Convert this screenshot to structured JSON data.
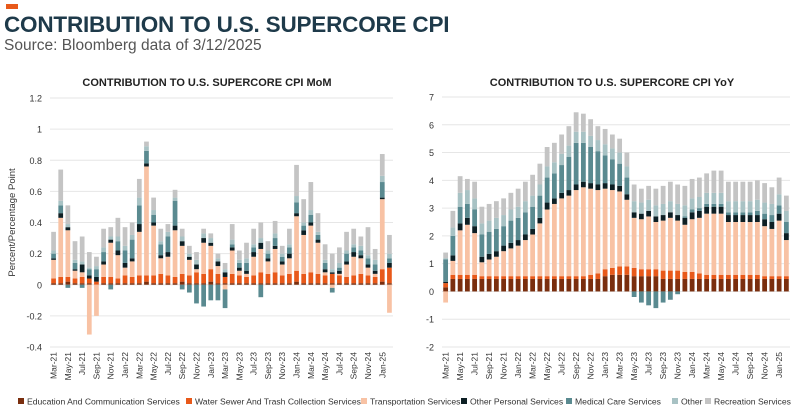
{
  "page": {
    "title": "CONTRIBUTION TO U.S. SUPERCORE CPI",
    "subtitle": "Source: Bloomberg data of 3/12/2025"
  },
  "colors": {
    "education": "#7a2e0e",
    "water": "#e8591a",
    "transportation": "#f8c2a4",
    "personal": "#0d1f24",
    "medical": "#5a8a90",
    "other": "#a8c2c4",
    "recreation": "#c4c4c4",
    "accent": "#e8591a",
    "title": "#1e3a4a"
  },
  "chart_data": [
    {
      "type": "bar",
      "stacked": true,
      "title": "CONTRIBUTION TO U.S. SUPERCORE CPI MoM",
      "xlabel": "",
      "ylabel": "Percent/Percentage Point",
      "ylim": [
        -0.4,
        1.2
      ],
      "yticks": [
        "-0.4",
        "-0.2",
        "0",
        "0.2",
        "0.4",
        "0.6",
        "0.8",
        "1",
        "1.2"
      ],
      "ytick_values": [
        -0.4,
        -0.2,
        0,
        0.2,
        0.4,
        0.6,
        0.8,
        1,
        1.2
      ],
      "categories": [
        "Mar-21",
        "Apr-21",
        "May-21",
        "Jun-21",
        "Jul-21",
        "Aug-21",
        "Sep-21",
        "Oct-21",
        "Nov-21",
        "Dec-21",
        "Jan-22",
        "Feb-22",
        "Mar-22",
        "Apr-22",
        "May-22",
        "Jun-22",
        "Jul-22",
        "Aug-22",
        "Sep-22",
        "Oct-22",
        "Nov-22",
        "Dec-22",
        "Jan-23",
        "Feb-23",
        "Mar-23",
        "Apr-23",
        "May-23",
        "Jun-23",
        "Jul-23",
        "Aug-23",
        "Sep-23",
        "Oct-23",
        "Nov-23",
        "Dec-23",
        "Jan-24",
        "Feb-24",
        "Mar-24",
        "Apr-24",
        "May-24",
        "Jun-24",
        "Jul-24",
        "Aug-24",
        "Sep-24",
        "Oct-24",
        "Nov-24",
        "Dec-24",
        "Jan-25",
        "Feb-25"
      ],
      "xtick_labels": [
        "Mar-21",
        "May-21",
        "Jul-21",
        "Sep-21",
        "Nov-21",
        "Jan-22",
        "Mar-22",
        "May-22",
        "Jul-22",
        "Sep-22",
        "Nov-22",
        "Jan-23",
        "Mar-23",
        "May-23",
        "Jul-23",
        "Sep-23",
        "Nov-23",
        "Jan-24",
        "Mar-24",
        "May-24",
        "Jul-24",
        "Sep-24",
        "Nov-24",
        "Jan-25"
      ],
      "series": [
        {
          "name": "Education And Communication Services",
          "key": "education",
          "values": [
            0.01,
            0.01,
            0.02,
            0.01,
            0.01,
            0.01,
            0.0,
            0.01,
            0.01,
            0.01,
            0.01,
            0.01,
            0.01,
            0.02,
            0.01,
            0.01,
            0.01,
            0.01,
            0.02,
            0.01,
            0.01,
            0.01,
            0.02,
            0.01,
            0.01,
            0.01,
            0.01,
            0.01,
            0.01,
            0.01,
            0.01,
            0.01,
            0.01,
            0.01,
            0.02,
            0.01,
            0.01,
            0.01,
            0.01,
            0.01,
            0.01,
            0.01,
            0.01,
            0.01,
            0.01,
            0.01,
            0.02,
            0.01
          ]
        },
        {
          "name": "Water Sewer And Trash Collection Services",
          "key": "water",
          "values": [
            0.03,
            0.04,
            0.03,
            0.03,
            0.04,
            0.03,
            0.02,
            0.04,
            0.04,
            0.03,
            0.05,
            0.04,
            0.05,
            0.04,
            0.05,
            0.06,
            0.05,
            0.04,
            0.05,
            0.05,
            0.07,
            0.06,
            0.08,
            0.06,
            0.04,
            0.06,
            0.05,
            0.04,
            0.05,
            0.07,
            0.06,
            0.07,
            0.05,
            0.06,
            0.07,
            0.06,
            0.07,
            0.06,
            0.05,
            0.06,
            0.05,
            0.04,
            0.05,
            0.06,
            0.05,
            0.04,
            0.08,
            0.1
          ]
        },
        {
          "name": "Transportation Services",
          "key": "transportation",
          "values": [
            0.12,
            0.38,
            0.3,
            0.05,
            0.03,
            -0.32,
            -0.2,
            0.08,
            0.22,
            0.15,
            0.05,
            0.1,
            0.28,
            0.7,
            0.32,
            0.1,
            0.12,
            0.3,
            0.18,
            0.1,
            0.02,
            0.2,
            0.15,
            0.05,
            -0.03,
            0.15,
            0.03,
            0.02,
            0.12,
            0.15,
            0.08,
            0.15,
            0.07,
            0.1,
            0.35,
            0.25,
            0.3,
            0.2,
            0.02,
            -0.02,
            0.01,
            0.08,
            0.12,
            0.1,
            0.05,
            0.02,
            0.45,
            -0.18
          ]
        },
        {
          "name": "Other Personal Services",
          "key": "personal",
          "values": [
            0.01,
            0.03,
            0.02,
            0.01,
            0.05,
            0.02,
            0.03,
            0.02,
            0.02,
            0.03,
            0.03,
            0.02,
            0.05,
            0.02,
            0.02,
            0.02,
            0.03,
            0.03,
            0.03,
            0.02,
            0.03,
            0.03,
            0.02,
            0.03,
            0.03,
            0.02,
            0.02,
            0.02,
            0.03,
            0.04,
            0.02,
            0.02,
            0.02,
            0.03,
            0.02,
            0.03,
            0.02,
            0.02,
            0.02,
            0.01,
            0.02,
            0.02,
            0.03,
            0.02,
            0.02,
            0.02,
            0.01,
            0.03
          ]
        },
        {
          "name": "Medical Care Services",
          "key": "medical",
          "values": [
            0.03,
            0.05,
            -0.02,
            0.04,
            -0.02,
            0.04,
            0.05,
            0.06,
            -0.03,
            0.06,
            0.08,
            0.12,
            0.12,
            0.08,
            0.05,
            0.07,
            0.1,
            0.16,
            -0.03,
            -0.05,
            -0.12,
            -0.14,
            -0.1,
            -0.1,
            -0.12,
            0.02,
            0.03,
            0.05,
            0.03,
            -0.08,
            0.03,
            0.05,
            0.03,
            0.04,
            0.07,
            0.03,
            0.05,
            0.03,
            0.04,
            -0.03,
            0.02,
            0.05,
            0.03,
            0.03,
            0.04,
            0.04,
            0.1,
            0.03
          ]
        },
        {
          "name": "Other",
          "key": "other",
          "values": [
            0.02,
            0.03,
            0.02,
            0.02,
            0.02,
            0.01,
            0.02,
            0.03,
            0.02,
            0.03,
            0.03,
            0.03,
            0.05,
            0.03,
            0.03,
            0.02,
            0.03,
            0.02,
            0.03,
            0.02,
            0.03,
            0.03,
            0.03,
            0.02,
            0.02,
            0.03,
            0.02,
            0.03,
            0.02,
            0.03,
            0.02,
            0.03,
            0.02,
            0.02,
            0.04,
            0.02,
            0.03,
            0.02,
            0.02,
            0.02,
            0.03,
            0.02,
            0.02,
            0.03,
            0.02,
            0.03,
            0.04,
            0.03
          ]
        },
        {
          "name": "Recreation Services",
          "key": "recreation",
          "values": [
            0.12,
            0.2,
            0.12,
            0.12,
            0.16,
            0.1,
            0.06,
            0.12,
            0.06,
            0.12,
            0.12,
            0.08,
            0.12,
            0.03,
            0.08,
            0.08,
            0.05,
            0.05,
            0.05,
            0.05,
            0.05,
            0.03,
            0.03,
            0.03,
            0.04,
            0.1,
            0.06,
            0.1,
            0.1,
            0.1,
            0.06,
            0.08,
            0.05,
            0.1,
            0.2,
            0.15,
            0.18,
            0.12,
            0.1,
            0.1,
            0.1,
            0.12,
            0.1,
            0.06,
            0.18,
            0.07,
            0.14,
            0.12
          ]
        }
      ]
    },
    {
      "type": "bar",
      "stacked": true,
      "title": "CONTRIBUTION TO U.S. SUPERCORE CPI YoY",
      "xlabel": "",
      "ylabel": "",
      "ylim": [
        -2,
        7
      ],
      "yticks": [
        "-2",
        "-1",
        "0",
        "1",
        "2",
        "3",
        "4",
        "5",
        "6",
        "7"
      ],
      "ytick_values": [
        -2,
        -1,
        0,
        1,
        2,
        3,
        4,
        5,
        6,
        7
      ],
      "categories": [
        "Mar-21",
        "Apr-21",
        "May-21",
        "Jun-21",
        "Jul-21",
        "Aug-21",
        "Sep-21",
        "Oct-21",
        "Nov-21",
        "Dec-21",
        "Jan-22",
        "Feb-22",
        "Mar-22",
        "Apr-22",
        "May-22",
        "Jun-22",
        "Jul-22",
        "Aug-22",
        "Sep-22",
        "Oct-22",
        "Nov-22",
        "Dec-22",
        "Jan-23",
        "Feb-23",
        "Mar-23",
        "Apr-23",
        "May-23",
        "Jun-23",
        "Jul-23",
        "Aug-23",
        "Sep-23",
        "Oct-23",
        "Nov-23",
        "Dec-23",
        "Jan-24",
        "Feb-24",
        "Mar-24",
        "Apr-24",
        "May-24",
        "Jun-24",
        "Jul-24",
        "Aug-24",
        "Sep-24",
        "Oct-24",
        "Nov-24",
        "Dec-24",
        "Jan-25",
        "Feb-25"
      ],
      "xtick_labels": [
        "Mar-21",
        "May-21",
        "Jul-21",
        "Sep-21",
        "Nov-21",
        "Jan-22",
        "Mar-22",
        "May-22",
        "Jul-22",
        "Sep-22",
        "Nov-22",
        "Jan-23",
        "Mar-23",
        "May-23",
        "Jul-23",
        "Sep-23",
        "Nov-23",
        "Jan-24",
        "Mar-24",
        "May-24",
        "Jul-24",
        "Sep-24",
        "Nov-24",
        "Jan-25"
      ],
      "series": [
        {
          "name": "Education And Communication Services",
          "key": "education",
          "values": [
            0.15,
            0.45,
            0.45,
            0.45,
            0.45,
            0.45,
            0.45,
            0.45,
            0.45,
            0.45,
            0.45,
            0.45,
            0.45,
            0.45,
            0.45,
            0.45,
            0.45,
            0.45,
            0.45,
            0.45,
            0.45,
            0.45,
            0.55,
            0.6,
            0.6,
            0.6,
            0.55,
            0.55,
            0.55,
            0.55,
            0.45,
            0.45,
            0.45,
            0.45,
            0.45,
            0.45,
            0.45,
            0.45,
            0.45,
            0.45,
            0.45,
            0.45,
            0.45,
            0.45,
            0.45,
            0.45,
            0.45,
            0.45
          ]
        },
        {
          "name": "Water Sewer And Trash Collection Services",
          "key": "water",
          "values": [
            0.15,
            0.15,
            0.15,
            0.15,
            0.15,
            0.1,
            0.1,
            0.1,
            0.1,
            0.1,
            0.1,
            0.1,
            0.1,
            0.1,
            0.1,
            0.1,
            0.1,
            0.1,
            0.1,
            0.1,
            0.15,
            0.2,
            0.25,
            0.25,
            0.3,
            0.3,
            0.3,
            0.25,
            0.25,
            0.25,
            0.3,
            0.3,
            0.3,
            0.25,
            0.25,
            0.2,
            0.15,
            0.15,
            0.15,
            0.15,
            0.15,
            0.15,
            0.15,
            0.15,
            0.1,
            0.1,
            0.1,
            0.1
          ]
        },
        {
          "name": "Transportation Services",
          "key": "transportation",
          "values": [
            -0.4,
            0.5,
            1.6,
            1.8,
            1.5,
            0.5,
            0.6,
            0.7,
            0.9,
            1.0,
            1.1,
            1.3,
            1.5,
            1.9,
            2.4,
            2.6,
            2.8,
            2.9,
            3.1,
            3.2,
            3.1,
            3.0,
            2.9,
            2.8,
            2.7,
            2.4,
            1.8,
            1.8,
            1.9,
            1.7,
            1.8,
            1.9,
            1.8,
            1.7,
            1.9,
            2.0,
            2.2,
            2.2,
            2.2,
            1.9,
            1.9,
            1.9,
            1.9,
            1.9,
            1.8,
            1.7,
            2.0,
            1.3
          ]
        },
        {
          "name": "Other Personal Services",
          "key": "personal",
          "values": [
            0.05,
            0.2,
            0.25,
            0.25,
            0.25,
            0.2,
            0.2,
            0.2,
            0.2,
            0.2,
            0.2,
            0.2,
            0.2,
            0.2,
            0.25,
            0.2,
            0.2,
            0.2,
            0.2,
            0.2,
            0.2,
            0.2,
            0.2,
            0.2,
            0.2,
            0.2,
            0.2,
            0.2,
            0.2,
            0.2,
            0.2,
            0.2,
            0.2,
            0.25,
            0.25,
            0.25,
            0.25,
            0.25,
            0.25,
            0.25,
            0.25,
            0.25,
            0.25,
            0.25,
            0.25,
            0.25,
            0.25,
            0.25
          ]
        },
        {
          "name": "Medical Care Services",
          "key": "medical",
          "values": [
            0.8,
            0.7,
            0.6,
            0.5,
            0.6,
            0.8,
            0.8,
            0.8,
            0.7,
            0.8,
            0.8,
            0.8,
            0.8,
            0.8,
            0.9,
            0.9,
            1.0,
            1.2,
            1.5,
            1.4,
            1.3,
            1.2,
            1.0,
            0.9,
            0.8,
            0.6,
            -0.2,
            -0.4,
            -0.5,
            -0.6,
            -0.4,
            -0.3,
            -0.1,
            0.05,
            0.1,
            0.1,
            0.1,
            0.1,
            0.1,
            0.1,
            0.1,
            0.1,
            0.1,
            0.15,
            0.2,
            0.25,
            0.3,
            0.4
          ]
        },
        {
          "name": "Other",
          "key": "other",
          "values": [
            0.05,
            0.3,
            0.5,
            0.5,
            0.4,
            0.4,
            0.4,
            0.4,
            0.4,
            0.4,
            0.4,
            0.4,
            0.4,
            0.4,
            0.4,
            0.4,
            0.4,
            0.4,
            0.4,
            0.4,
            0.4,
            0.4,
            0.4,
            0.4,
            0.4,
            0.4,
            0.4,
            0.4,
            0.4,
            0.4,
            0.4,
            0.4,
            0.4,
            0.4,
            0.4,
            0.4,
            0.4,
            0.4,
            0.4,
            0.4,
            0.4,
            0.4,
            0.4,
            0.4,
            0.4,
            0.4,
            0.4,
            0.4
          ]
        },
        {
          "name": "Recreation Services",
          "key": "recreation",
          "values": [
            0.2,
            0.6,
            0.6,
            0.4,
            0.6,
            0.6,
            0.6,
            0.6,
            0.6,
            0.6,
            0.65,
            0.7,
            0.75,
            0.75,
            0.7,
            0.7,
            0.7,
            0.7,
            0.7,
            0.65,
            0.6,
            0.5,
            0.55,
            0.5,
            0.5,
            0.5,
            0.6,
            0.5,
            0.5,
            0.6,
            0.65,
            0.7,
            0.7,
            0.7,
            0.7,
            0.7,
            0.7,
            0.8,
            0.8,
            0.7,
            0.7,
            0.7,
            0.7,
            0.7,
            0.7,
            0.6,
            0.6,
            0.55
          ]
        }
      ]
    }
  ],
  "legend": [
    {
      "label": "Education And Communication Services",
      "key": "education"
    },
    {
      "label": "Water Sewer And Trash Collection Services",
      "key": "water"
    },
    {
      "label": "Transportation Services",
      "key": "transportation"
    },
    {
      "label": "Other Personal Services",
      "key": "personal"
    },
    {
      "label": "Medical Care Services",
      "key": "medical"
    },
    {
      "label": "Other",
      "key": "other"
    },
    {
      "label": "Recreation Services",
      "key": "recreation"
    }
  ]
}
